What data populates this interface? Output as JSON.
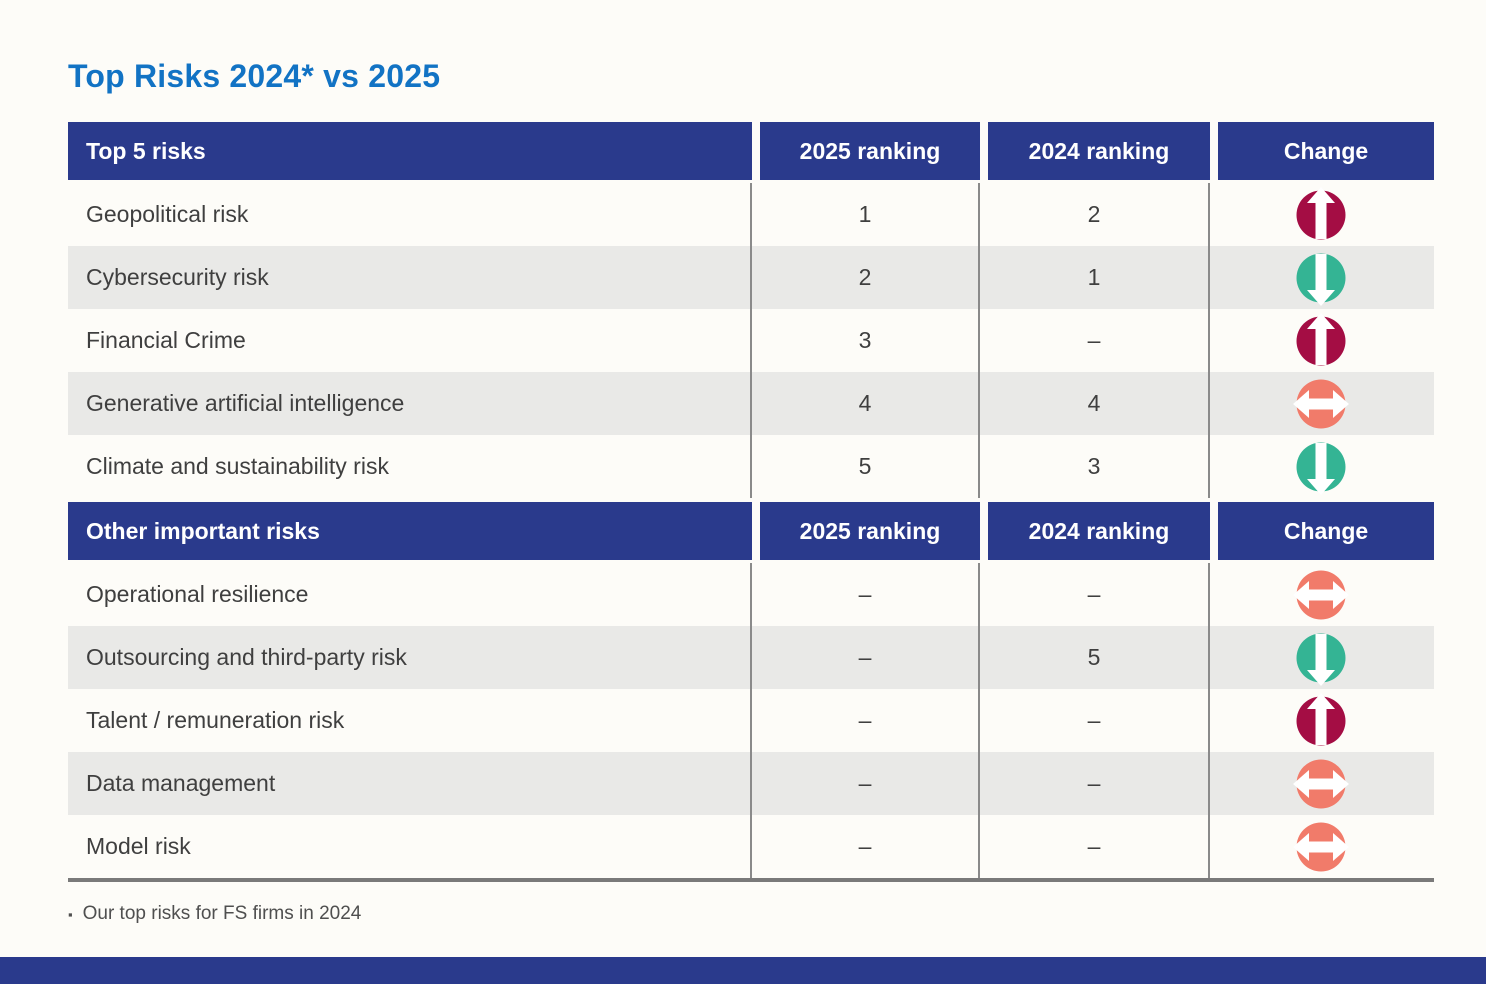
{
  "page": {
    "title": "Top Risks 2024* vs 2025",
    "footnote_bullet": "▪",
    "footnote": "Our top risks for FS firms in 2024"
  },
  "colors": {
    "title_blue": "#1273C4",
    "header_navy": "#2A3A8C",
    "row_alt_gray": "#E9E9E7",
    "arrow_up_crimson": "#A40D44",
    "arrow_down_teal": "#34B494",
    "arrow_same_salmon": "#F17B6A"
  },
  "table": {
    "columns": [
      "2025 ranking",
      "2024 ranking",
      "Change"
    ],
    "sections": [
      {
        "header": "Top 5 risks",
        "rows": [
          {
            "risk": "Geopolitical risk",
            "r2025": "1",
            "r2024": "2",
            "change": "up"
          },
          {
            "risk": "Cybersecurity risk",
            "r2025": "2",
            "r2024": "1",
            "change": "down"
          },
          {
            "risk": "Financial Crime",
            "r2025": "3",
            "r2024": "–",
            "change": "up"
          },
          {
            "risk": "Generative artificial intelligence",
            "r2025": "4",
            "r2024": "4",
            "change": "same"
          },
          {
            "risk": "Climate and sustainability risk",
            "r2025": "5",
            "r2024": "3",
            "change": "down"
          }
        ]
      },
      {
        "header": "Other important risks",
        "rows": [
          {
            "risk": "Operational resilience",
            "r2025": "–",
            "r2024": "–",
            "change": "same"
          },
          {
            "risk": "Outsourcing and third-party risk",
            "r2025": "–",
            "r2024": "5",
            "change": "down"
          },
          {
            "risk": "Talent / remuneration risk",
            "r2025": "–",
            "r2024": "–",
            "change": "up"
          },
          {
            "risk": "Data management",
            "r2025": "–",
            "r2024": "–",
            "change": "same"
          },
          {
            "risk": "Model risk",
            "r2025": "–",
            "r2024": "–",
            "change": "same"
          }
        ]
      }
    ]
  }
}
